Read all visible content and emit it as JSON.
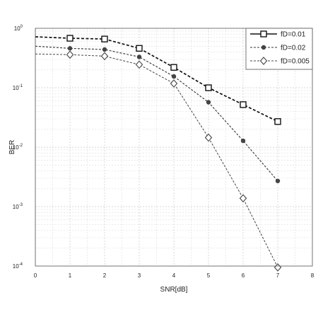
{
  "chart_data": {
    "type": "line",
    "xlabel": "SNR[dB]",
    "ylabel": "BER",
    "xlim": [
      0,
      8
    ],
    "ylim": [
      0.0001,
      1
    ],
    "yscale": "log",
    "xticks": [
      "0",
      "1",
      "2",
      "3",
      "4",
      "5",
      "6",
      "7",
      "8"
    ],
    "yticks": [
      {
        "base": "10",
        "exp": "0",
        "value": 1
      },
      {
        "base": "10",
        "exp": "-1",
        "value": 0.1
      },
      {
        "base": "10",
        "exp": "-2",
        "value": 0.01
      },
      {
        "base": "10",
        "exp": "-3",
        "value": 0.001
      },
      {
        "base": "10",
        "exp": "-4",
        "value": 0.0001
      }
    ],
    "grid": true,
    "legend_position": "top-right",
    "series": [
      {
        "name": "fD=0.01",
        "marker": "square",
        "color": "#000000",
        "x": [
          0,
          1,
          2,
          3,
          4,
          5,
          6,
          7
        ],
        "y": [
          0.72,
          0.68,
          0.66,
          0.46,
          0.22,
          0.1,
          0.052,
          0.027
        ],
        "marker_x": [
          1,
          2,
          3,
          4,
          5,
          6,
          7
        ]
      },
      {
        "name": "fD=0.02",
        "marker": "circle",
        "color": "#000000",
        "x": [
          0,
          1,
          2,
          3,
          4,
          5,
          6,
          7
        ],
        "y": [
          0.5,
          0.46,
          0.44,
          0.33,
          0.155,
          0.057,
          0.0128,
          0.0027
        ],
        "marker_x": [
          1,
          2,
          3,
          4,
          5,
          6,
          7
        ]
      },
      {
        "name": "fD=0.005",
        "marker": "diamond",
        "color": "#000000",
        "x": [
          0,
          1,
          2,
          3,
          4,
          5,
          6,
          7
        ],
        "y": [
          0.37,
          0.36,
          0.34,
          0.245,
          0.118,
          0.0145,
          0.00138,
          9.5e-05
        ],
        "marker_x": [
          1,
          2,
          3,
          4,
          5,
          6,
          7
        ]
      }
    ]
  }
}
